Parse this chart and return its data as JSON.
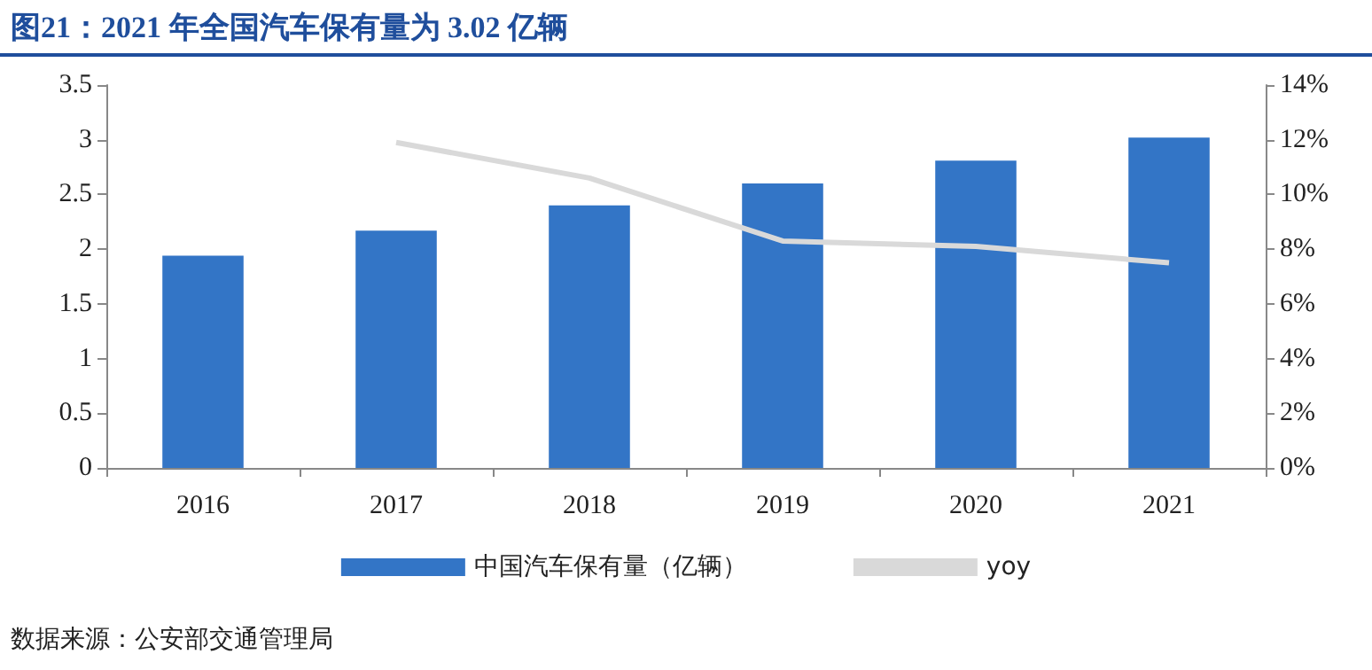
{
  "chart_data": {
    "type": "bar",
    "title": "图21：2021 年全国汽车保有量为 3.02 亿辆",
    "annotations": [
      "数据来源：公安部交通管理局"
    ],
    "categories": [
      "2016",
      "2017",
      "2018",
      "2019",
      "2020",
      "2021"
    ],
    "series": [
      {
        "name": "中国汽车保有量（亿辆）",
        "color": "#3375c6",
        "values": [
          1.94,
          2.17,
          2.4,
          2.6,
          2.81,
          3.02
        ]
      },
      {
        "name": "yoy",
        "type": "line",
        "axis": "y2",
        "color": "#d9d9d9",
        "values": [
          null,
          11.9,
          10.6,
          8.3,
          8.1,
          7.5
        ]
      }
    ],
    "ylim": [
      0,
      3.5
    ],
    "yticks": [
      0,
      0.5,
      1,
      1.5,
      2,
      2.5,
      3,
      3.5
    ],
    "y2lim": [
      0,
      14
    ],
    "y2ticks": [
      {
        "value": 0,
        "label": "0%"
      },
      {
        "value": 2,
        "label": "2%"
      },
      {
        "value": 4,
        "label": "4%"
      },
      {
        "value": 6,
        "label": "6%"
      },
      {
        "value": 8,
        "label": "8%"
      },
      {
        "value": 10,
        "label": "10%"
      },
      {
        "value": 12,
        "label": "12%"
      },
      {
        "value": 14,
        "label": "14%"
      }
    ],
    "legend": "bottom",
    "marker": "none"
  }
}
